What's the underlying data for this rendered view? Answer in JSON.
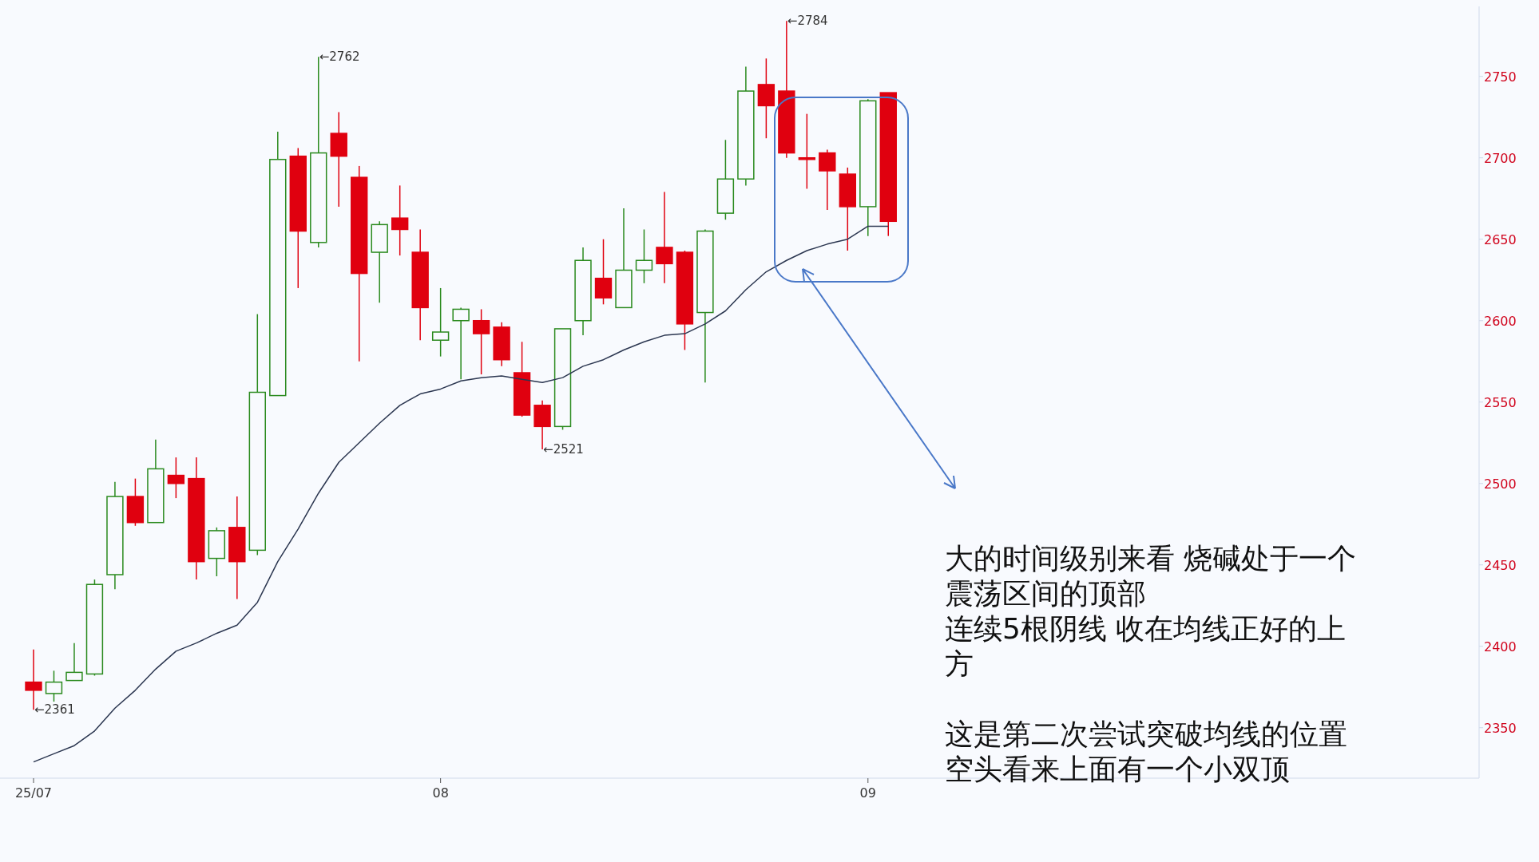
{
  "chart_data": {
    "type": "candlestick",
    "categories": [
      "25/07",
      null,
      null,
      null,
      null,
      null,
      null,
      null,
      null,
      null,
      null,
      null,
      null,
      null,
      null,
      null,
      null,
      null,
      null,
      null,
      "08",
      null,
      null,
      null,
      null,
      null,
      null,
      null,
      null,
      null,
      null,
      null,
      null,
      null,
      null,
      null,
      null,
      null,
      null,
      null,
      null,
      "09",
      null
    ],
    "ohlc": [
      [
        2378,
        2398,
        2361,
        2373
      ],
      [
        2371,
        2385,
        2366,
        2378
      ],
      [
        2379,
        2402,
        2379,
        2384
      ],
      [
        2383,
        2441,
        2382,
        2438
      ],
      [
        2444,
        2501,
        2435,
        2492
      ],
      [
        2492,
        2503,
        2474,
        2476
      ],
      [
        2476,
        2527,
        2476,
        2509
      ],
      [
        2505,
        2516,
        2491,
        2500
      ],
      [
        2503,
        2516,
        2441,
        2452
      ],
      [
        2454,
        2473,
        2443,
        2471
      ],
      [
        2473,
        2492,
        2429,
        2452
      ],
      [
        2459,
        2604,
        2456,
        2556
      ],
      [
        2554,
        2716,
        2554,
        2699
      ],
      [
        2701,
        2706,
        2620,
        2655
      ],
      [
        2648,
        2762,
        2645,
        2703
      ],
      [
        2715,
        2728,
        2670,
        2701
      ],
      [
        2688,
        2695,
        2575,
        2629
      ],
      [
        2642,
        2661,
        2611,
        2659
      ],
      [
        2663,
        2683,
        2640,
        2656
      ],
      [
        2642,
        2656,
        2588,
        2608
      ],
      [
        2588,
        2620,
        2578,
        2593
      ],
      [
        2600,
        2608,
        2564,
        2607
      ],
      [
        2600,
        2607,
        2567,
        2592
      ],
      [
        2596,
        2599,
        2572,
        2576
      ],
      [
        2568,
        2587,
        2541,
        2542
      ],
      [
        2548,
        2551,
        2521,
        2535
      ],
      [
        2535,
        2595,
        2533,
        2595
      ],
      [
        2600,
        2645,
        2591,
        2637
      ],
      [
        2626,
        2650,
        2610,
        2614
      ],
      [
        2608,
        2669,
        2608,
        2631
      ],
      [
        2631,
        2656,
        2623,
        2637
      ],
      [
        2645,
        2679,
        2623,
        2635
      ],
      [
        2642,
        2643,
        2582,
        2598
      ],
      [
        2605,
        2656,
        2562,
        2655
      ],
      [
        2666,
        2711,
        2662,
        2687
      ],
      [
        2687,
        2756,
        2683,
        2741
      ],
      [
        2745,
        2761,
        2712,
        2732
      ],
      [
        2741,
        2784,
        2700,
        2703
      ],
      [
        2700,
        2727,
        2681,
        2699
      ],
      [
        2703,
        2705,
        2668,
        2692
      ],
      [
        2690,
        2694,
        2643,
        2670
      ],
      [
        2670,
        2736,
        2652,
        2735
      ],
      [
        2740,
        2740,
        2652,
        2661
      ]
    ],
    "colors": [
      "#e0000f",
      "#2a8a1e",
      "#2a8a1e",
      "#2a8a1e",
      "#2a8a1e",
      "#e0000f",
      "#2a8a1e",
      "#e0000f",
      "#e0000f",
      "#2a8a1e",
      "#e0000f",
      "#2a8a1e",
      "#2a8a1e",
      "#e0000f",
      "#2a8a1e",
      "#e0000f",
      "#e0000f",
      "#2a8a1e",
      "#e0000f",
      "#e0000f",
      "#2a8a1e",
      "#2a8a1e",
      "#e0000f",
      "#e0000f",
      "#e0000f",
      "#e0000f",
      "#2a8a1e",
      "#2a8a1e",
      "#e0000f",
      "#2a8a1e",
      "#2a8a1e",
      "#e0000f",
      "#e0000f",
      "#2a8a1e",
      "#2a8a1e",
      "#2a8a1e",
      "#e0000f",
      "#e0000f",
      "#e0000f",
      "#e0000f",
      "#e0000f",
      "#2a8a1e",
      "#e0000f"
    ],
    "series": [
      {
        "type": "line",
        "color": "#2b3650",
        "values": [
          2329,
          2334,
          2339,
          2348,
          2362,
          2373,
          2386,
          2397,
          2402,
          2408,
          2413,
          2427,
          2452,
          2472,
          2494,
          2513,
          2525,
          2537,
          2548,
          2555,
          2558,
          2563,
          2565,
          2566,
          2564,
          2562,
          2565,
          2572,
          2576,
          2582,
          2587,
          2591,
          2592,
          2598,
          2606,
          2619,
          2630,
          2637,
          2643,
          2647,
          2650,
          2658,
          2658
        ]
      }
    ],
    "ylim": [
      2319,
      2793
    ],
    "yticks": [
      2350,
      2400,
      2450,
      2500,
      2550,
      2600,
      2650,
      2700,
      2750
    ],
    "grid": false,
    "annotations": [
      "←2762",
      "←2784",
      "←2521",
      "←2361",
      "大的时间级别来看 烧碱处于一个震荡区间的顶部",
      "连续5根阴线 收在均线正好的上方",
      "这是第二次尝试突破均线的位置",
      "空头看来上面有一个小双顶"
    ]
  }
}
